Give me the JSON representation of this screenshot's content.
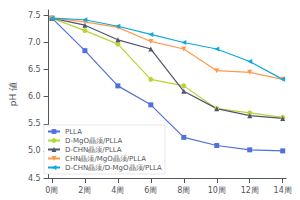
{
  "chart_data": {
    "type": "line",
    "ylabel": "pH 値",
    "x": [
      0,
      2,
      4,
      6,
      8,
      10,
      12,
      14
    ],
    "series": [
      {
        "name": "PLLA",
        "values": [
          7.45,
          6.85,
          6.2,
          5.85,
          5.25,
          5.1,
          5.02,
          5.0
        ],
        "marker": "square",
        "line_style": "solid"
      },
      {
        "name": "D-MgO晶须/PLLA",
        "values": [
          7.45,
          7.22,
          6.97,
          6.32,
          6.2,
          5.78,
          5.7,
          5.62
        ],
        "marker": "circle",
        "line_style": "solid"
      },
      {
        "name": "D-CHN晶须/PLLA",
        "values": [
          7.45,
          7.32,
          7.05,
          6.88,
          6.1,
          5.78,
          5.65,
          5.6
        ],
        "marker": "triangle-up",
        "line_style": "solid"
      },
      {
        "name": "CHN晶须/MgO晶须/PLLA",
        "values": [
          7.45,
          7.38,
          7.28,
          7.02,
          6.88,
          6.48,
          6.45,
          6.32
        ],
        "marker": "triangle-down",
        "line_style": "solid"
      },
      {
        "name": "D-CHN晶须/D-MgO晶须/PLLA",
        "values": [
          7.45,
          7.42,
          7.3,
          7.15,
          7.0,
          6.88,
          6.65,
          6.32
        ],
        "marker": "caret-left",
        "line_style": "solid"
      }
    ],
    "xlim": [
      -0.2,
      14.2
    ],
    "xticks": [
      {
        "value": 0,
        "label": "0周"
      },
      {
        "value": 2,
        "label": "2周"
      },
      {
        "value": 4,
        "label": "4周"
      },
      {
        "value": 6,
        "label": "6周"
      },
      {
        "value": 8,
        "label": "8周"
      },
      {
        "value": 10,
        "label": "10周"
      },
      {
        "value": 12,
        "label": "12周"
      },
      {
        "value": 14,
        "label": "14周"
      }
    ],
    "ylim": [
      4.5,
      7.6
    ],
    "yticks": [
      4.5,
      {
        "value": 5.0,
        "label": "5.0"
      },
      5.5,
      {
        "value": 6.0,
        "label": "6.0"
      },
      6.5,
      {
        "value": 7.0,
        "label": "7.0"
      },
      7.5
    ],
    "grid": false,
    "legend": "lower left"
  }
}
